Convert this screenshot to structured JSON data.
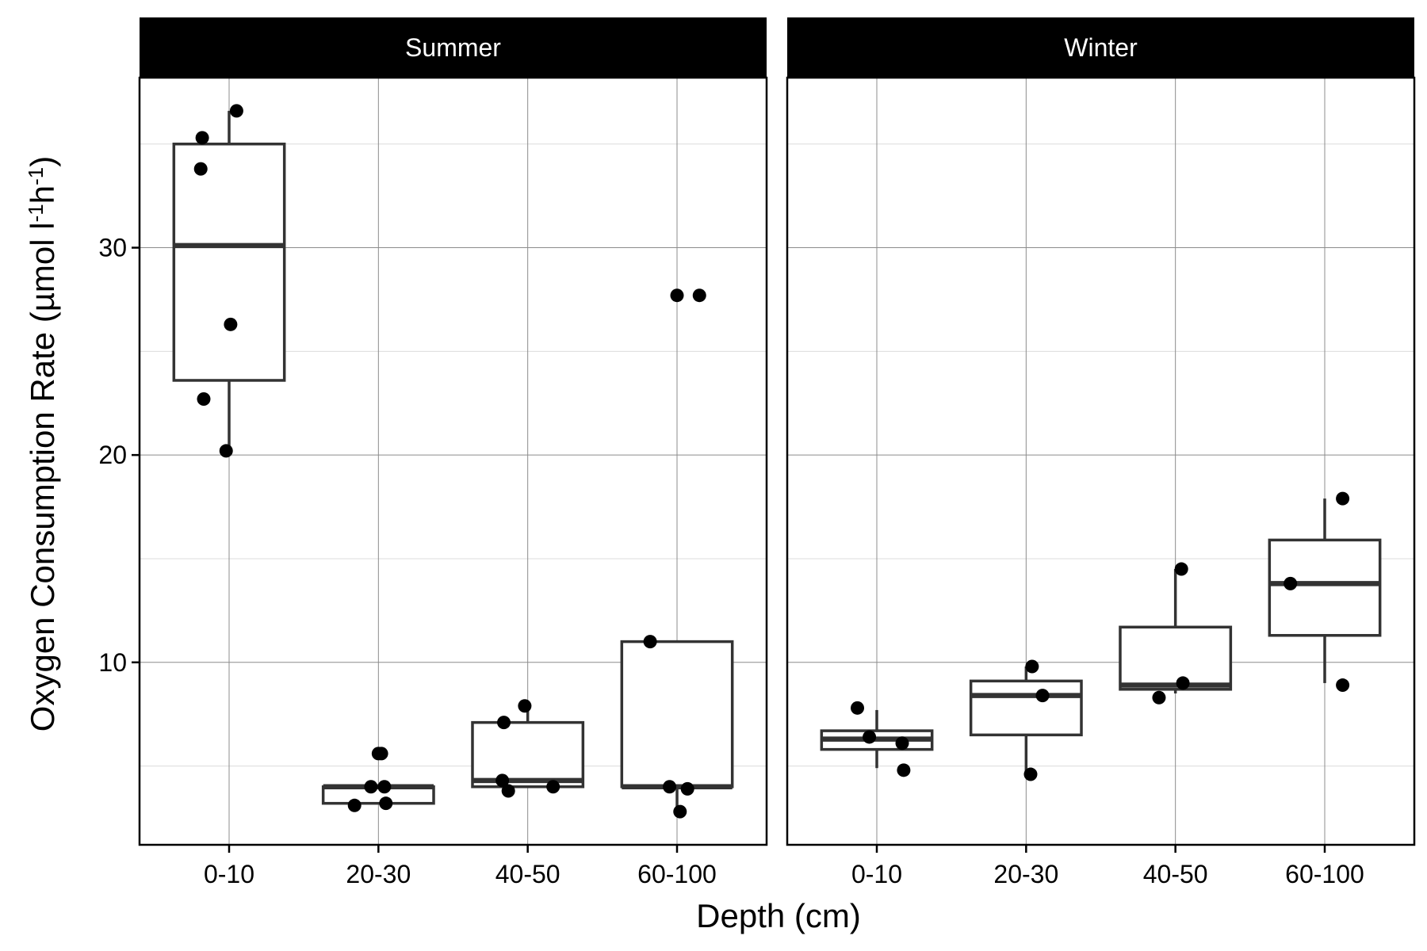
{
  "chart_data": {
    "type": "boxplot",
    "ylabel_parts": [
      "Oxygen Consumption Rate (µmol l",
      "-1",
      "h",
      "-1",
      ")"
    ],
    "xlabel": "Depth (cm)",
    "categories": [
      "0-10",
      "20-30",
      "40-50",
      "60-100"
    ],
    "ylim": [
      1.2,
      38.2
    ],
    "yticks": [
      10,
      20,
      30
    ],
    "grid": true,
    "panels": [
      {
        "name": "Summer",
        "boxes": [
          {
            "category": "0-10",
            "whisker_low": 20.2,
            "q1": 23.6,
            "median": 30.1,
            "q3": 35.0,
            "whisker_high": 36.6,
            "points": [
              [
                -0.18,
                35.3
              ],
              [
                -0.19,
                33.8
              ],
              [
                0.01,
                26.3
              ],
              [
                -0.17,
                22.7
              ],
              [
                -0.02,
                20.2
              ],
              [
                0.05,
                36.6
              ]
            ]
          },
          {
            "category": "20-30",
            "whisker_low": 3.2,
            "q1": 3.2,
            "median": 4.0,
            "q3": 4.0,
            "whisker_high": 4.0,
            "points": [
              [
                0.0,
                5.6
              ],
              [
                0.02,
                5.6
              ],
              [
                -0.05,
                4.0
              ],
              [
                0.04,
                4.0
              ],
              [
                -0.16,
                3.1
              ],
              [
                0.05,
                3.2
              ]
            ]
          },
          {
            "category": "40-50",
            "whisker_low": 4.0,
            "q1": 4.0,
            "median": 4.3,
            "q3": 7.1,
            "whisker_high": 7.9,
            "points": [
              [
                -0.16,
                7.1
              ],
              [
                -0.02,
                7.9
              ],
              [
                -0.17,
                4.3
              ],
              [
                -0.13,
                3.8
              ],
              [
                0.17,
                4.0
              ]
            ]
          },
          {
            "category": "60-100",
            "whisker_low": 2.8,
            "q1": 4.0,
            "median": 4.0,
            "q3": 11.0,
            "whisker_high": 11.0,
            "points": [
              [
                0.0,
                27.7
              ],
              [
                0.15,
                27.7
              ],
              [
                -0.18,
                11.0
              ],
              [
                -0.05,
                4.0
              ],
              [
                0.07,
                3.9
              ],
              [
                0.02,
                2.8
              ]
            ]
          }
        ]
      },
      {
        "name": "Winter",
        "boxes": [
          {
            "category": "0-10",
            "whisker_low": 4.9,
            "q1": 5.8,
            "median": 6.3,
            "q3": 6.7,
            "whisker_high": 7.7,
            "points": [
              [
                -0.13,
                7.8
              ],
              [
                -0.05,
                6.4
              ],
              [
                0.17,
                6.1
              ],
              [
                0.18,
                4.8
              ]
            ]
          },
          {
            "category": "20-30",
            "whisker_low": 4.6,
            "q1": 6.5,
            "median": 8.4,
            "q3": 9.1,
            "whisker_high": 9.8,
            "points": [
              [
                0.04,
                9.8
              ],
              [
                0.11,
                8.4
              ],
              [
                0.03,
                4.6
              ]
            ]
          },
          {
            "category": "40-50",
            "whisker_low": 8.5,
            "q1": 8.7,
            "median": 8.9,
            "q3": 11.7,
            "whisker_high": 14.5,
            "points": [
              [
                -0.11,
                8.3
              ],
              [
                0.05,
                9.0
              ],
              [
                0.04,
                14.5
              ]
            ]
          },
          {
            "category": "60-100",
            "whisker_low": 9.0,
            "q1": 11.3,
            "median": 13.8,
            "q3": 15.9,
            "whisker_high": 17.9,
            "points": [
              [
                -0.23,
                13.8
              ],
              [
                0.12,
                17.9
              ],
              [
                0.12,
                8.9
              ]
            ]
          }
        ]
      }
    ]
  }
}
